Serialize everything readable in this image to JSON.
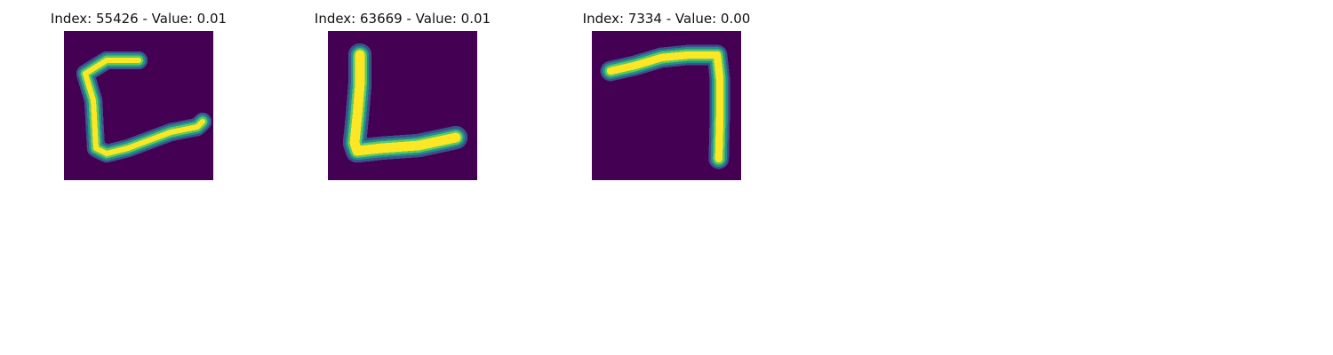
{
  "background_color": "#440154",
  "stroke_colors": {
    "core": "#fde725",
    "mid": "#5ec962",
    "edge": "#21918c",
    "outer": "#3b528b"
  },
  "panels": [
    {
      "title": "Index: 55426 - Value: 0.01",
      "glyph": "c-shape"
    },
    {
      "title": "Index: 63669 - Value: 0.01",
      "glyph": "l-shape"
    },
    {
      "title": "Index: 7334 - Value: 0.00",
      "glyph": "seven-shape"
    }
  ]
}
